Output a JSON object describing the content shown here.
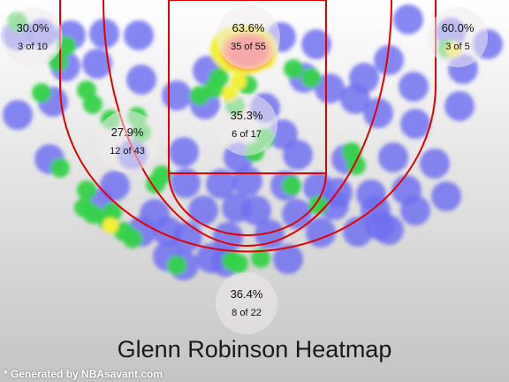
{
  "chart_data": {
    "type": "heatmap",
    "title": "Glenn Robinson Heatmap",
    "zones": [
      {
        "id": "left-corner-three",
        "pct": "30.0%",
        "made_of_attempts": "3 of 10",
        "made": 3,
        "attempts": 10
      },
      {
        "id": "restricted-area",
        "pct": "63.6%",
        "made_of_attempts": "35 of 55",
        "made": 35,
        "attempts": 55
      },
      {
        "id": "right-corner-three",
        "pct": "60.0%",
        "made_of_attempts": "3 of 5",
        "made": 3,
        "attempts": 5
      },
      {
        "id": "left-midrange",
        "pct": "27.9%",
        "made_of_attempts": "12 of 43",
        "made": 12,
        "attempts": 43
      },
      {
        "id": "paint-non-ra",
        "pct": "35.3%",
        "made_of_attempts": "6 of 17",
        "made": 6,
        "attempts": 17
      },
      {
        "id": "above-break-three",
        "pct": "36.4%",
        "made_of_attempts": "8 of 22",
        "made": 8,
        "attempts": 22
      }
    ],
    "colors": {
      "line": "#e00000",
      "cold": "#6e6ef0",
      "warm": "#36d24a",
      "hot": "#f2f03a",
      "hottest": "#ff5a5a"
    }
  },
  "footer": {
    "credit": "* Generated by NBAsavant.com"
  }
}
